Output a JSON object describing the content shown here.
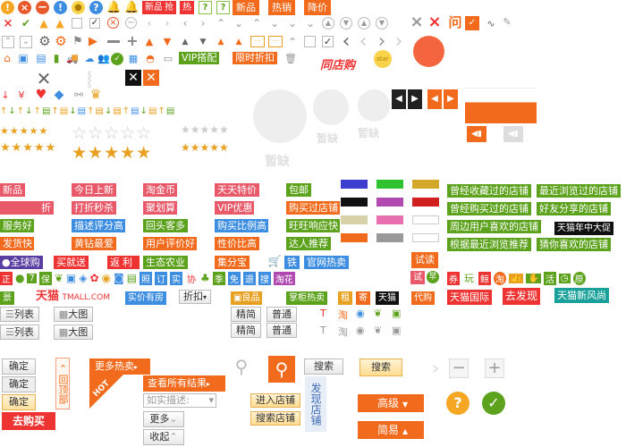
{
  "row1": {
    "new_tag": "新品",
    "rush_tag": "抢",
    "hot_tag": "热",
    "new_btn": "新品",
    "hotsale_btn": "热销",
    "price_drop_btn": "降价",
    "ask_icon": "问"
  },
  "row3": {
    "vip_tag": "VIP搭配",
    "limited_tag": "限时折扣",
    "tongdian_logo": "同店购",
    "star_badge": "star"
  },
  "row4": {
    "currency": "¥"
  },
  "placeholder": {
    "lack": "暂缺"
  },
  "ui_colors": {
    "orange": "#f26a1b",
    "red": "#e53333",
    "green": "#5da21d",
    "blue": "#3d6bb5"
  },
  "tags_col1": [
    "新品",
    "折",
    "服务好",
    "发货快"
  ],
  "tags_col2": [
    "今日上新",
    "打折秒杀",
    "描述评分高",
    "黄钻最爱"
  ],
  "tags_col3": [
    "淘金币",
    "聚划算",
    "回头客多",
    "用户评价好"
  ],
  "tags_col4": [
    "天天特价",
    "VIP优惠",
    "购买比例高",
    "性价比高"
  ],
  "tags_col5": [
    "包邮",
    "购买过店铺",
    "旺旺响应快",
    "达人推荐"
  ],
  "green_tags": [
    "曾经收藏过的店铺",
    "最近浏览过的店铺",
    "曾经购买过的店铺",
    "好友分享的店铺",
    "周边用户喜欢的店铺",
    "天猫年中大促",
    "根据最近浏览推荐",
    "猜你喜欢的店铺"
  ],
  "row_brands": {
    "global": "全球购",
    "buy_send": "买就送",
    "rebate": "返利",
    "eco": "生态农业",
    "collect": "集分宝",
    "iron": "铁",
    "official": "官网热卖",
    "try_read": "试读"
  },
  "row_icons2": {
    "taohua": "淘花",
    "tmall_small": "天猫",
    "dai_gou": "代购",
    "shou": "搜",
    "zhi": "租",
    "ji": "寄",
    "da_pei": "搭",
    "ding": "订",
    "zhao": "照",
    "shi": "实",
    "xie": "协",
    "ji2": "季",
    "mian": "免",
    "tui": "退",
    "shi_tag": "试",
    "zao": "早",
    "juan": "券",
    "jing": "鲸",
    "wan": "玩",
    "tao_circle": "淘",
    "huo": "活",
    "yuan": "原",
    "tmall_intl": "天猫国际",
    "go_find": "去发现",
    "tmall_fashion": "天猫新风尚"
  },
  "row_tmall": {
    "jing_tag": "景",
    "tmall_logo": "天猫",
    "tmall_domain": "TMALL.COM",
    "real_house": "实价有房",
    "discount": "折扣",
    "good_product": "良品",
    "hot_sale": "掌柜热卖"
  },
  "view": {
    "list": "列表",
    "big": "大图",
    "simple": "精简",
    "normal": "普通"
  },
  "actions": {
    "confirm": "确定",
    "back_top": "回顶部",
    "go_buy": "去购买",
    "more_hot": "更多热卖",
    "hot_corner": "HOT",
    "view_all": "查看所有结果",
    "desc_placeholder": "如实描述:",
    "more": "更多",
    "collapse": "收起",
    "search": "搜索",
    "enter_shop": "进入店铺",
    "search_shop": "搜索店铺",
    "discover_shop": "发现店铺",
    "advanced": "高级",
    "simple": "简易",
    "help": "?",
    "ok": "✓"
  }
}
